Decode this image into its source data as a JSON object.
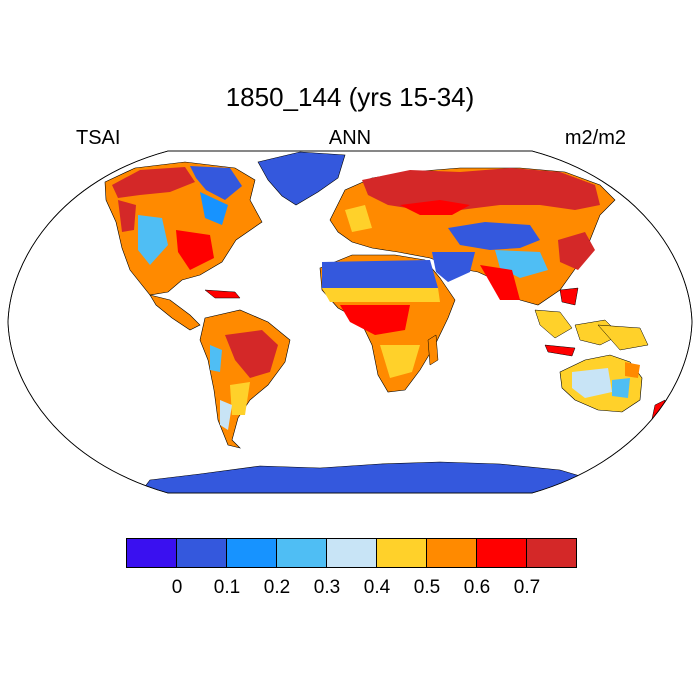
{
  "title": "1850_144 (yrs 15-34)",
  "labels": {
    "left": "TSAI",
    "center": "ANN",
    "right": "m2/m2"
  },
  "colorbar": {
    "colors": [
      "#3a10f0",
      "#3458dd",
      "#1793ff",
      "#4fbef4",
      "#c8e4f6",
      "#ffd12a",
      "#ff8a00",
      "#ff0000",
      "#d42828"
    ],
    "ticks": [
      "0",
      "0.1",
      "0.2",
      "0.3",
      "0.4",
      "0.5",
      "0.6",
      "0.7"
    ]
  },
  "map": {
    "projection": "Robinson",
    "ocean_color": "#ffffff",
    "coastline_color": "#000000"
  }
}
